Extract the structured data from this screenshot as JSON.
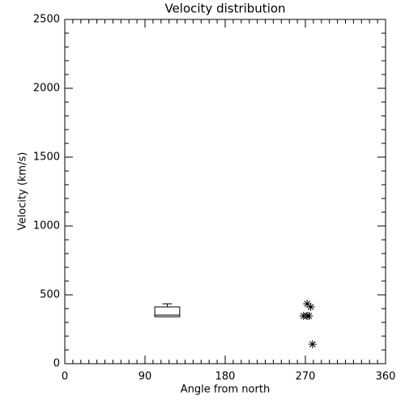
{
  "chart_data": {
    "type": "box",
    "title": "Velocity distribution",
    "xlabel": "Angle from north",
    "ylabel": "Velocity (km/s)",
    "xlim": [
      0,
      360
    ],
    "xticks": [
      0,
      90,
      180,
      270,
      360
    ],
    "xminor_divisions": 9,
    "ylim": [
      0,
      2500
    ],
    "yticks": [
      0,
      500,
      1000,
      1500,
      2000,
      2500
    ],
    "yminor_divisions": 5,
    "color": "#000000",
    "box": {
      "xrange": [
        101,
        129
      ],
      "whisker_x": 115,
      "min": 341,
      "q1": 341,
      "median": 353,
      "q3": 412,
      "max": 435
    },
    "points": {
      "x": [
        272,
        276,
        268,
        272,
        274,
        278
      ],
      "y": [
        435,
        412,
        347,
        347,
        347,
        141
      ]
    }
  }
}
